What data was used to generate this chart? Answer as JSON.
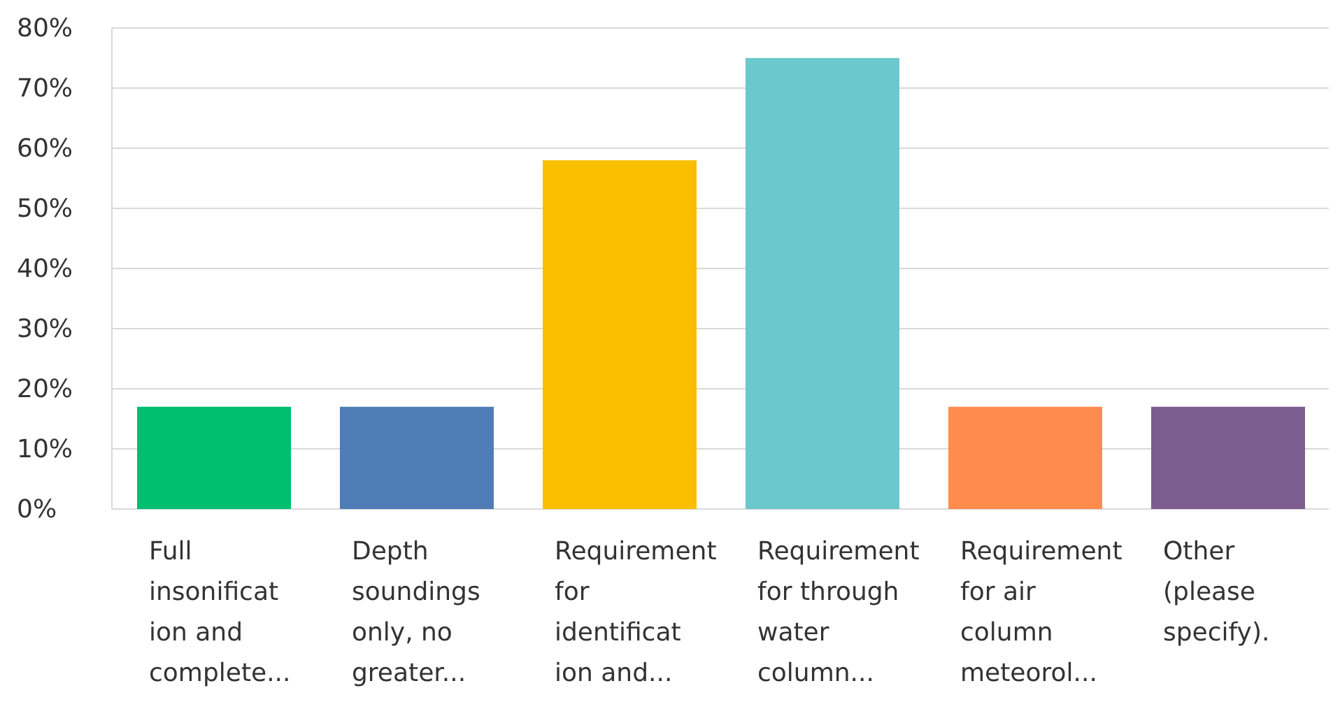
{
  "chart_data": {
    "type": "bar",
    "categories": [
      "Full\ninsonificat\nion and\ncomplete...",
      "Depth\nsoundings\nonly, no\ngreater...",
      "Requirement\nfor\nidentificat\nion and...",
      "Requirement\nfor through\nwater\ncolumn...",
      "Requirement\nfor air\ncolumn\nmeteorol...",
      "Other\n(please\nspecify)."
    ],
    "values": [
      17,
      17,
      58,
      75,
      17,
      17
    ],
    "colors": [
      "#00bf6f",
      "#507cb6",
      "#f9be00",
      "#6bc8cd",
      "#ff8b4f",
      "#7d5d90"
    ],
    "ylim": [
      0,
      80
    ],
    "yticks": [
      {
        "value": 0,
        "label": "0%"
      },
      {
        "value": 10,
        "label": "10%"
      },
      {
        "value": 20,
        "label": "20%"
      },
      {
        "value": 30,
        "label": "30%"
      },
      {
        "value": 40,
        "label": "40%"
      },
      {
        "value": 50,
        "label": "50%"
      },
      {
        "value": 60,
        "label": "60%"
      },
      {
        "value": 70,
        "label": "70%"
      },
      {
        "value": 80,
        "label": "80%"
      }
    ],
    "grid": "y"
  }
}
